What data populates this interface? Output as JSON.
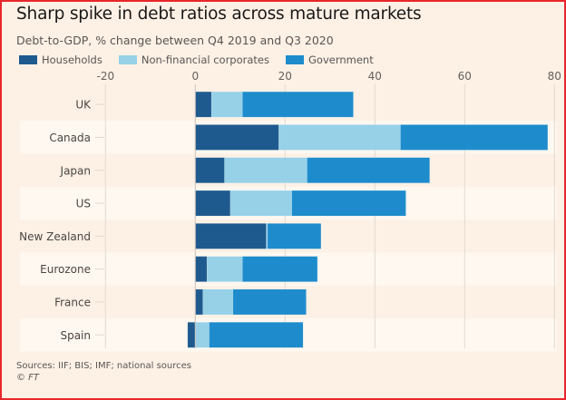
{
  "chart_data": {
    "type": "bar",
    "orientation": "horizontal",
    "stacked": true,
    "title": "Sharp spike in debt ratios across mature markets",
    "subtitle": "Debt-to-GDP, % change between Q4 2019 and Q3 2020",
    "xlabel": "",
    "ylabel": "",
    "xlim": [
      -20,
      80
    ],
    "xticks": [
      -20,
      0,
      20,
      40,
      60,
      80
    ],
    "xtick_labels": [
      "-20",
      "0",
      "20",
      "40",
      "60",
      "80"
    ],
    "grid": true,
    "legend_position": "top-left",
    "categories": [
      "UK",
      "Canada",
      "Japan",
      "US",
      "New Zealand",
      "Eurozone",
      "France",
      "Spain"
    ],
    "series": [
      {
        "name": "Households",
        "color": "#1f5a8f",
        "values": [
          3.6,
          18.6,
          6.5,
          7.8,
          15.8,
          2.6,
          1.7,
          -1.7
        ]
      },
      {
        "name": "Non-financial corporates",
        "color": "#96d1e8",
        "values": [
          6.9,
          27.1,
          18.4,
          13.7,
          0.3,
          7.9,
          6.7,
          3.1
        ]
      },
      {
        "name": "Government",
        "color": "#1e8ccc",
        "values": [
          24.7,
          32.8,
          27.3,
          25.4,
          11.9,
          16.7,
          16.3,
          20.9
        ]
      }
    ],
    "source": "Sources: IIF; BIS; IMF; national sources",
    "copyright": "© FT"
  },
  "colors": {
    "background": "#fdf1e6",
    "band": "#fef8f0",
    "border": "#e8262a",
    "gridline": "#e3d9cf",
    "tick_text": "#66605c"
  }
}
